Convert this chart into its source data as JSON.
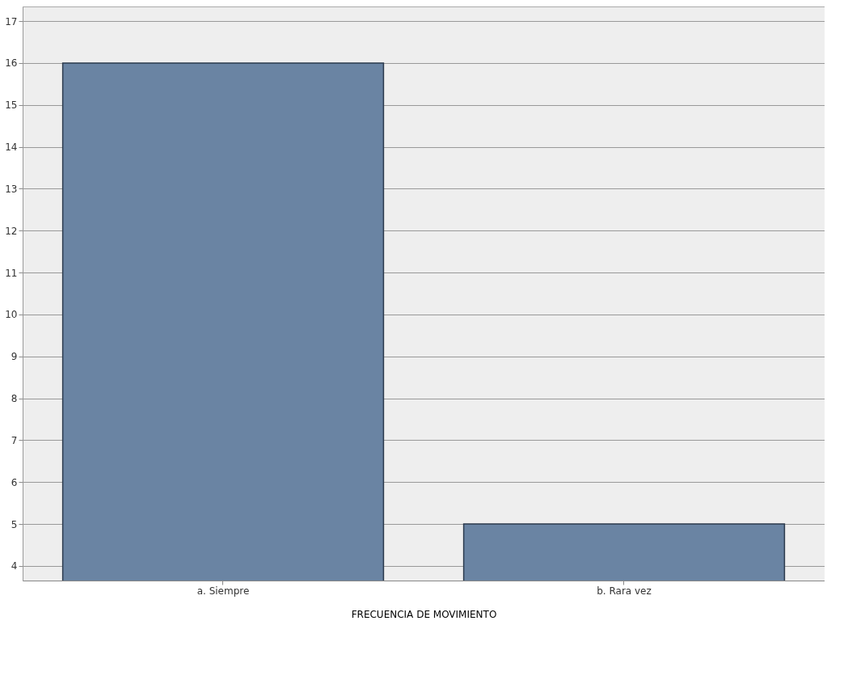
{
  "chart_data": {
    "type": "bar",
    "xlabel": "FRECUENCIA DE MOVIMIENTO",
    "categories": [
      "a. Siempre",
      "b. Rara vez"
    ],
    "values": [
      16,
      5
    ],
    "color": "#6a84a3",
    "ylim": [
      3.65,
      17.35
    ],
    "yticks": [
      4,
      5,
      6,
      7,
      8,
      9,
      10,
      11,
      12,
      13,
      14,
      15,
      16,
      17
    ],
    "grid": "y"
  }
}
